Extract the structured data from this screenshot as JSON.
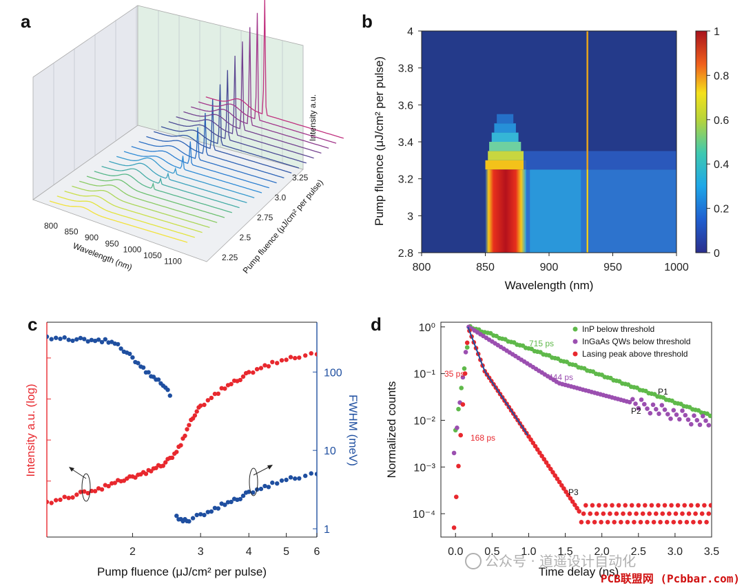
{
  "panels": {
    "a": {
      "letter": "a",
      "chart_data": {
        "type": "3d-waterfall-line",
        "xlabel": "Wavelength (nm)",
        "ylabel": "Pump fluence (μJ/cm² per pulse)",
        "zlabel": "Intensity a.u.",
        "xticks": [
          "800",
          "850",
          "900",
          "950",
          "1000",
          "1050",
          "1100"
        ],
        "yticks": [
          "2.25",
          "2.5",
          "2.75",
          "3.0",
          "3.25"
        ],
        "ncurves": 22,
        "lasing_peak_nm": 930,
        "broad_peak_nm": 865
      }
    },
    "b": {
      "letter": "b",
      "chart_data": {
        "type": "heatmap",
        "xlabel": "Wavelength (nm)",
        "ylabel": "Pump fluence (μJ/cm² per pulse)",
        "xlim": [
          800,
          1000
        ],
        "ylim": [
          2.8,
          4.0
        ],
        "xticks": [
          "800",
          "850",
          "900",
          "950",
          "1000"
        ],
        "yticks": [
          "2.8",
          "3",
          "3.2",
          "3.4",
          "3.6",
          "3.8",
          "4"
        ],
        "colorbar_ticks": [
          "0",
          "0.2",
          "0.4",
          "0.6",
          "0.8",
          "1"
        ],
        "colorbar_range": [
          0,
          1
        ],
        "broad_band_center_nm": 865,
        "lasing_line_nm": 930,
        "threshold_fluence": 3.25
      }
    },
    "c": {
      "letter": "c",
      "chart_data": {
        "type": "scatter",
        "xscale": "log",
        "xlabel": "Pump fluence (μJ/cm² per pulse)",
        "ylabel_left": "Intensity a.u. (log)",
        "ylabel_right": "FWHM (meV)",
        "xticks": [
          "2",
          "3",
          "4",
          "5",
          "6"
        ],
        "yticks_right": [
          "1",
          "10",
          "100"
        ],
        "xlim": [
          1.2,
          6
        ],
        "series": [
          {
            "name": "Intensity",
            "color": "#e8282e",
            "axis": "left",
            "x": [
              1.2,
              1.3,
              1.4,
              1.5,
              1.6,
              1.7,
              1.8,
              1.9,
              2.0,
              2.1,
              2.2,
              2.3,
              2.4,
              2.5,
              2.6,
              2.7,
              2.8,
              2.9,
              3.0,
              3.2,
              3.4,
              3.6,
              3.8,
              4.0,
              4.3,
              4.6,
              5.0,
              5.4,
              6.0
            ],
            "y": [
              -4.6,
              -4.5,
              -4.4,
              -4.3,
              -4.25,
              -4.15,
              -4.05,
              -3.95,
              -3.9,
              -3.8,
              -3.75,
              -3.65,
              -3.55,
              -3.4,
              -3.2,
              -2.9,
              -2.5,
              -2.2,
              -2.0,
              -1.75,
              -1.55,
              -1.4,
              -1.25,
              -1.1,
              -0.95,
              -0.85,
              -0.75,
              -0.65,
              -0.6
            ]
          },
          {
            "name": "FWHM below threshold",
            "color": "#1f4fa0",
            "axis": "right",
            "x": [
              1.2,
              1.3,
              1.4,
              1.5,
              1.6,
              1.7,
              1.8,
              1.9,
              2.0,
              2.1,
              2.2,
              2.3,
              2.4,
              2.5
            ],
            "y": [
              270,
              265,
              262,
              258,
              255,
              250,
              230,
              190,
              150,
              120,
              95,
              80,
              70,
              50
            ]
          },
          {
            "name": "FWHM above threshold",
            "color": "#1f4fa0",
            "axis": "right",
            "x": [
              2.6,
              2.7,
              2.8,
              3.0,
              3.2,
              3.4,
              3.6,
              3.8,
              4.0,
              4.3,
              4.6,
              5.0,
              5.4,
              6.0
            ],
            "y": [
              1.4,
              1.25,
              1.3,
              1.5,
              1.7,
              2.0,
              2.2,
              2.5,
              2.9,
              3.3,
              3.7,
              4.2,
              4.6,
              5.0
            ]
          }
        ]
      }
    },
    "d": {
      "letter": "d",
      "chart_data": {
        "type": "scatter",
        "yscale": "log",
        "xlabel": "Time delay (ns)",
        "ylabel": "Normalized counts",
        "xlim": [
          -0.2,
          3.5
        ],
        "ylim_exp": [
          -4.5,
          0.1
        ],
        "xticks": [
          "0.0",
          "0.5",
          "1.0",
          "1.5",
          "2.0",
          "2.5",
          "3.0",
          "3.5"
        ],
        "yticks": [
          "10⁻⁴",
          "10⁻³",
          "10⁻²",
          "10⁻¹",
          "10⁰"
        ],
        "legend": [
          {
            "label": "InP below threshold",
            "color": "#5fb94a"
          },
          {
            "label": "InGaAs QWs below threshold",
            "color": "#9b4fb0"
          },
          {
            "label": "Lasing peak above threshold",
            "color": "#e8282e"
          }
        ],
        "series": [
          {
            "name": "InP below threshold",
            "color": "#5fb94a",
            "tau_ps": 715
          },
          {
            "name": "InGaAs QWs below threshold",
            "color": "#9b4fb0",
            "tau_ps": 444
          },
          {
            "name": "Lasing peak above threshold",
            "color": "#e8282e",
            "tau_ps": [
              35,
              168
            ]
          }
        ],
        "annotations": [
          {
            "text": "715 ps",
            "color": "#5fb94a"
          },
          {
            "text": "444 ps",
            "color": "#9b4fb0"
          },
          {
            "text": "35 ps",
            "color": "#e8282e"
          },
          {
            "text": "168 ps",
            "color": "#e8282e"
          },
          {
            "text": "P1",
            "color": "#111111"
          },
          {
            "text": "P2",
            "color": "#111111"
          },
          {
            "text": "P3",
            "color": "#111111"
          }
        ]
      }
    }
  },
  "watermark": {
    "wechat": "公众号 · 道遥设计自动化",
    "site": "PCB联盟网 (Pcbbar.com)"
  }
}
